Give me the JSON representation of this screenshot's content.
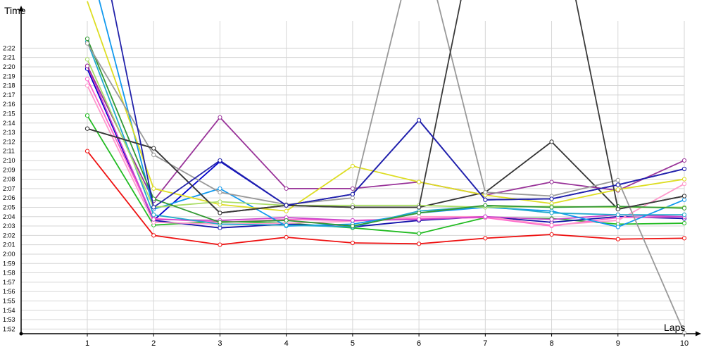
{
  "chart_data": {
    "type": "line",
    "xlabel": "Laps",
    "ylabel": "Time",
    "x": [
      1,
      2,
      3,
      4,
      5,
      6,
      7,
      8,
      9,
      10
    ],
    "x_tick_labels": [
      "1",
      "2",
      "3",
      "4",
      "5",
      "6",
      "7",
      "8",
      "9",
      "10"
    ],
    "ylim_seconds": [
      7092,
      7360
    ],
    "y_tick_labels": [
      "1:52",
      "1:53",
      "1:54",
      "1:55",
      "1:56",
      "1:57",
      "1:58",
      "1:59",
      "2:00",
      "2:01",
      "2:02",
      "2:03",
      "2:04",
      "2:05",
      "2:06",
      "2:07",
      "2:08",
      "2:09",
      "2:10",
      "2:11",
      "2:12",
      "2:13",
      "2:14",
      "2:15",
      "2:16",
      "2:17",
      "2:18",
      "2:19",
      "2:20",
      "2:21",
      "2:22"
    ],
    "y_tick_seconds": [
      6720,
      6780,
      6840,
      6900,
      6960,
      7020,
      7080,
      7140,
      7200,
      7260,
      7320,
      7380,
      7440,
      7500,
      7560,
      7620,
      7680,
      7740,
      7800,
      7860,
      7920,
      7980,
      8040,
      8100,
      8160,
      8220,
      8280,
      8340,
      8400,
      8460,
      8520
    ],
    "grid": true,
    "series": [
      {
        "color": "#ee1111",
        "values": [
          "2:11.0",
          "2:02.0",
          "2:01.0",
          "2:01.8",
          "2:01.2",
          "2:01.1",
          "2:01.7",
          "2:02.1",
          "2:01.6",
          "2:01.7"
        ]
      },
      {
        "color": "#22bb22",
        "values": [
          "2:14.8",
          "2:03.1",
          "2:03.5",
          "2:03.3",
          "2:02.8",
          "2:02.2",
          "2:03.9",
          "2:03.8",
          "2:03.2",
          "2:03.3"
        ]
      },
      {
        "color": "#333333",
        "values": [
          "2:13.4",
          "2:11.3",
          "2:04.4",
          "2:05.2",
          "2:05.0",
          "2:05.0",
          "2:06.6",
          "2:12.0",
          "2:04.8",
          "2:06.2"
        ]
      },
      {
        "color": "#1111aa",
        "values": [
          "2:19.8",
          "2:03.6",
          "2:02.8",
          "2:03.2",
          "2:02.9",
          "2:03.6",
          "2:04.0",
          "2:03.4",
          "2:04.0",
          "2:03.8"
        ]
      },
      {
        "color": "#0000cc",
        "values": [
          "2:19.8",
          "2:03.6",
          "2:09.9",
          "2:05.2",
          "2:06.4",
          "2:14.3",
          "2:05.8",
          "2:05.9",
          "2:07.4",
          "2:09.1"
        ]
      },
      {
        "color": "#ff66cc",
        "values": [
          "2:18.7",
          "2:03.8",
          "2:03.4",
          "2:03.7",
          "2:03.6",
          "2:03.8",
          "2:03.9",
          "2:03.0",
          "2:03.9",
          "2:04.0"
        ]
      },
      {
        "color": "#ff99cc",
        "values": [
          "2:18.0",
          "2:03.4",
          "2:03.2",
          "2:03.3",
          "2:03.5",
          "2:04.0",
          "2:04.0",
          "2:03.1",
          "2:03.6",
          "2:07.5"
        ]
      },
      {
        "color": "#cc44cc",
        "values": [
          "2:20.1",
          "2:03.7",
          "2:03.6",
          "2:03.9",
          "2:03.6",
          "2:03.7",
          "2:04.0",
          "2:03.7",
          "2:04.2",
          "2:04.0"
        ]
      },
      {
        "color": "#993399",
        "values": [
          "2:20.1",
          "2:05.7",
          "2:14.6",
          "2:07.0",
          "2:07.0",
          "2:07.7",
          "2:06.3",
          "2:07.7",
          "2:06.8",
          "2:10.0"
        ]
      },
      {
        "color": "#1199ee",
        "values": [
          "2:32.0",
          "2:04.8",
          "2:07.0",
          "2:03.0",
          "2:03.2",
          "2:04.4",
          "2:05.0",
          "2:04.6",
          "2:02.9",
          "2:05.8"
        ]
      },
      {
        "color": "#22aacc",
        "values": [
          "2:22.7",
          "2:04.2",
          "2:03.2",
          "2:03.1",
          "2:02.9",
          "2:04.6",
          "2:05.1",
          "2:04.4",
          "2:04.2",
          "2:04.2"
        ]
      },
      {
        "color": "#dddd22",
        "values": [
          "2:27.0",
          "2:07.0",
          "2:05.3",
          "2:04.6",
          "2:09.4",
          "2:07.7",
          "2:06.3",
          "2:05.4",
          "2:06.9",
          "2:08.0"
        ]
      },
      {
        "color": "#aadd66",
        "values": [
          "2:20.8",
          "2:05.0",
          "2:05.6",
          "2:05.2",
          "2:05.2",
          "2:05.2",
          "2:05.0",
          "2:05.1",
          "2:05.0",
          "2:05.0"
        ]
      },
      {
        "color": "#339933",
        "values": [
          "2:23.0",
          "2:05.9",
          "2:03.4",
          "2:03.6",
          "2:03.0",
          "2:04.4",
          "2:05.2",
          "2:05.0",
          "2:05.1",
          "2:04.9"
        ]
      },
      {
        "color": "#999999",
        "values": [
          "2:22.5",
          "2:10.6",
          "2:06.6",
          "2:05.3",
          "2:06.0",
          "2:35.0",
          "2:06.6",
          "2:06.2",
          "2:07.9",
          "1:51.6"
        ]
      },
      {
        "color": "#3a3a3a",
        "values": [
          "2:13.4",
          "2:11.3",
          "2:04.4",
          "2:05.2",
          "2:05.0",
          "2:05.0",
          "2:40.0",
          "2:40.0",
          "2:04.8",
          "2:06.2"
        ]
      },
      {
        "color": "#2222aa",
        "values": [
          "2:40.0",
          "2:05.0",
          "2:10.0",
          "2:05.2",
          "2:06.4",
          "2:14.3",
          "2:05.8",
          "2:05.9",
          "2:07.4",
          "2:09.1"
        ]
      }
    ]
  }
}
